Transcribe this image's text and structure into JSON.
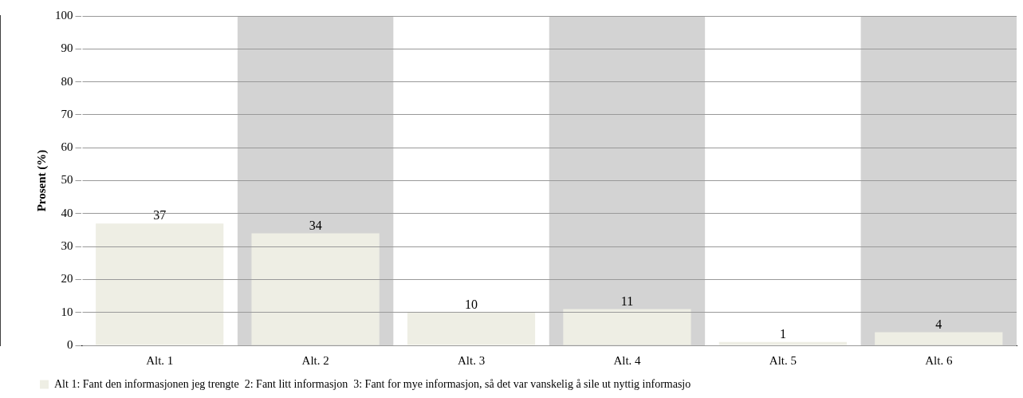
{
  "chart_data": {
    "type": "bar",
    "ylabel": "Prosent (%)",
    "categories": [
      "Alt. 1",
      "Alt. 2",
      "Alt. 3",
      "Alt. 4",
      "Alt. 5",
      "Alt. 6"
    ],
    "series": [
      {
        "name": "Alt 1: Fant den informasjonen jeg trengte  2: Fant litt informasjon  3: Fant for mye informasjon, så det var vanskelig å sile ut nyttig informasjo",
        "color": "#eeeee4",
        "values": [
          37,
          34,
          10,
          11,
          1,
          4
        ]
      }
    ],
    "ylim": [
      0,
      100
    ],
    "yticks": [
      0,
      10,
      20,
      30,
      40,
      50,
      60,
      70,
      80,
      90,
      100
    ],
    "grid": "y",
    "legend": "bottom",
    "data_labels": true
  }
}
